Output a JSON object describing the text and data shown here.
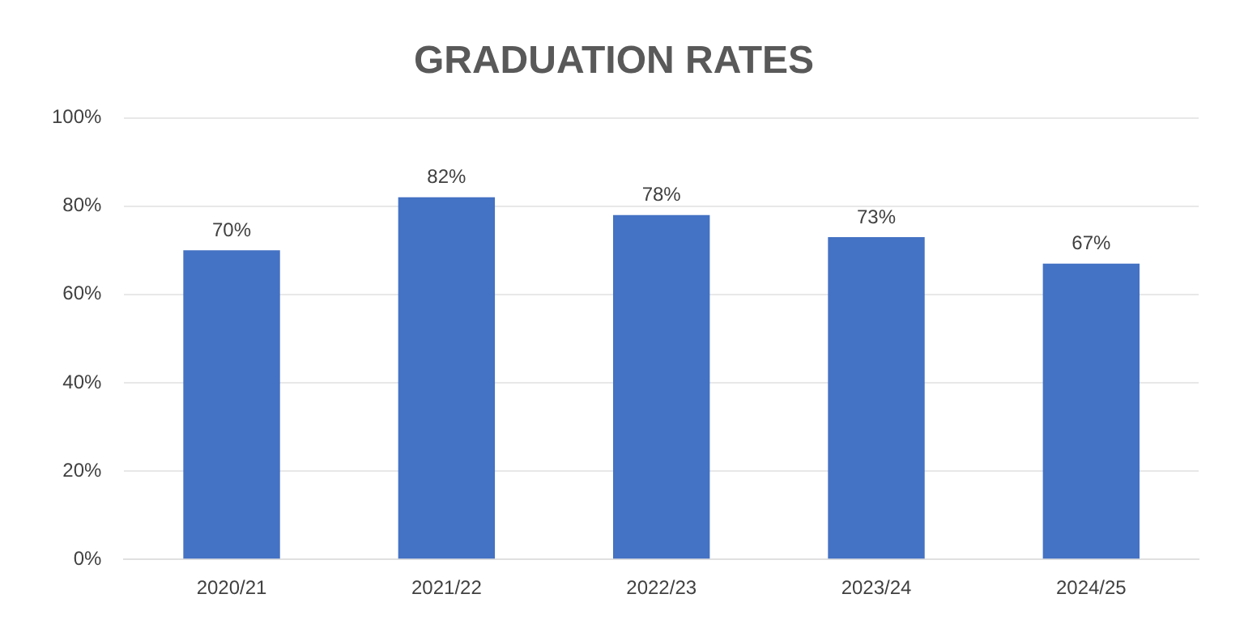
{
  "chart_data": {
    "type": "bar",
    "title": "GRADUATION RATES",
    "categories": [
      "2020/21",
      "2021/22",
      "2022/23",
      "2023/24",
      "2024/25"
    ],
    "values": [
      70,
      82,
      78,
      73,
      67
    ],
    "color": "#4472c4",
    "value_labels": [
      "70%",
      "82%",
      "78%",
      "73%",
      "67%"
    ],
    "ylim": [
      0,
      100
    ],
    "yticks": [
      {
        "value": 0,
        "label": "0%"
      },
      {
        "value": 20,
        "label": "20%"
      },
      {
        "value": 40,
        "label": "40%"
      },
      {
        "value": 60,
        "label": "60%"
      },
      {
        "value": 80,
        "label": "80%"
      },
      {
        "value": 100,
        "label": "100%"
      }
    ],
    "grid": "y",
    "legend": false
  }
}
